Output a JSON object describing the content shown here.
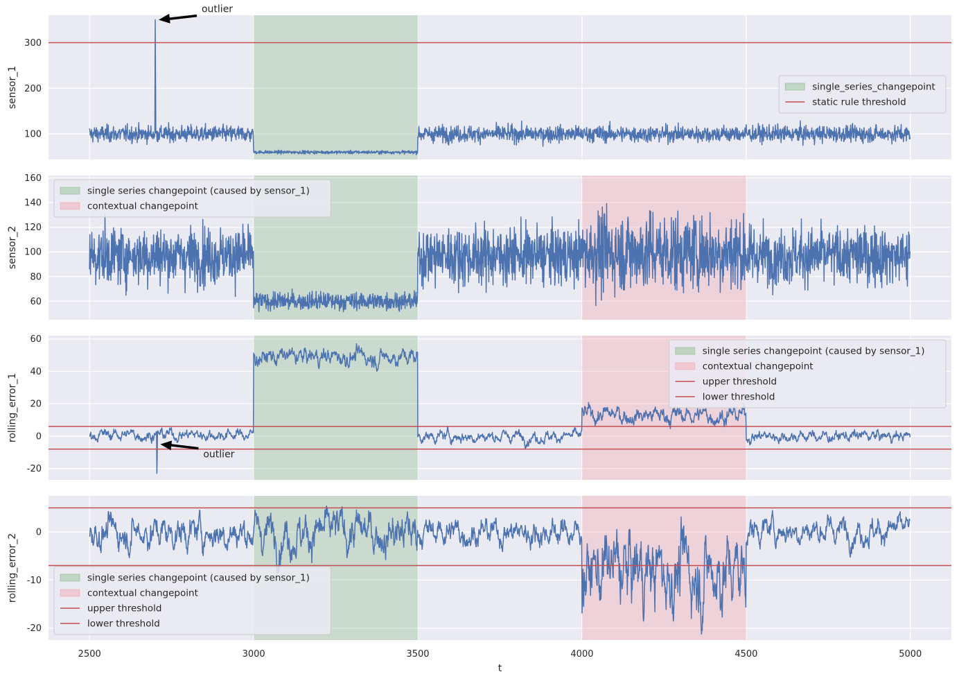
{
  "colors": {
    "series": "#4c72b0",
    "threshold": "#c44e52",
    "green_span": "#8fbc8f",
    "red_span": "#f4a6b0",
    "axes_bg": "#eaeaf2",
    "grid": "#ffffff",
    "arrow": "#000000"
  },
  "chart_data": [
    {
      "type": "line",
      "ylabel": "sensor_1",
      "ylim": [
        44,
        360
      ],
      "yticks": [
        100,
        200,
        300
      ],
      "xlim": [
        2375,
        5125
      ],
      "series": [
        {
          "name": "sensor_1",
          "segments": [
            {
              "x0": 2500,
              "x1": 3000,
              "mean": 100,
              "noise": 10
            },
            {
              "x0": 3000,
              "x1": 3500,
              "mean": 60,
              "noise": 2
            },
            {
              "x0": 3500,
              "x1": 5000,
              "mean": 100,
              "noise": 10
            }
          ],
          "spikes": [
            {
              "x": 2700,
              "y": 350
            }
          ]
        }
      ],
      "spans": [
        {
          "x0": 3000,
          "x1": 3500,
          "color": "green"
        }
      ],
      "hlines": [
        {
          "y": 300
        }
      ],
      "annotations": [
        {
          "text": "outlier",
          "x": 2700,
          "y": 350
        }
      ],
      "legend": {
        "position": "center-right",
        "entries": [
          {
            "kind": "patch",
            "color": "green",
            "label": "single_series_changepoint"
          },
          {
            "kind": "line",
            "label": "static rule threshold"
          }
        ]
      }
    },
    {
      "type": "line",
      "ylabel": "sensor_2",
      "ylim": [
        45,
        162
      ],
      "yticks": [
        60,
        80,
        100,
        120,
        140,
        160
      ],
      "xlim": [
        2375,
        5125
      ],
      "series": [
        {
          "name": "sensor_2",
          "segments": [
            {
              "x0": 2500,
              "x1": 3000,
              "mean": 97,
              "noise": 13
            },
            {
              "x0": 3000,
              "x1": 3500,
              "mean": 60,
              "noise": 4
            },
            {
              "x0": 3500,
              "x1": 4000,
              "mean": 97,
              "noise": 13
            },
            {
              "x0": 4000,
              "x1": 4500,
              "mean": 100,
              "noise": 18
            },
            {
              "x0": 4500,
              "x1": 5000,
              "mean": 97,
              "noise": 13
            }
          ]
        }
      ],
      "spans": [
        {
          "x0": 3000,
          "x1": 3500,
          "color": "green"
        },
        {
          "x0": 4000,
          "x1": 4500,
          "color": "red"
        }
      ],
      "hlines": [],
      "legend": {
        "position": "upper-left",
        "entries": [
          {
            "kind": "patch",
            "color": "green",
            "label": "single series changepoint (caused by sensor_1)"
          },
          {
            "kind": "patch",
            "color": "red",
            "label": "contextual changepoint"
          }
        ]
      }
    },
    {
      "type": "line",
      "ylabel": "rolling_error_1",
      "ylim": [
        -27,
        62
      ],
      "yticks": [
        -20,
        0,
        20,
        40,
        60
      ],
      "xlim": [
        2375,
        5125
      ],
      "series": [
        {
          "name": "rolling_error_1",
          "segments": [
            {
              "x0": 2500,
              "x1": 3000,
              "mean": 1,
              "noise": 2
            },
            {
              "x0": 3000,
              "x1": 3500,
              "mean": 49,
              "noise": 3
            },
            {
              "x0": 3500,
              "x1": 4000,
              "mean": 0,
              "noise": 2
            },
            {
              "x0": 4000,
              "x1": 4500,
              "mean": 13,
              "noise": 3
            },
            {
              "x0": 4500,
              "x1": 5000,
              "mean": 0,
              "noise": 2
            }
          ],
          "spikes": [
            {
              "x": 2705,
              "y": -23
            }
          ]
        }
      ],
      "spans": [
        {
          "x0": 3000,
          "x1": 3500,
          "color": "green"
        },
        {
          "x0": 4000,
          "x1": 4500,
          "color": "red"
        }
      ],
      "hlines": [
        {
          "y": 6
        },
        {
          "y": -8
        }
      ],
      "annotations": [
        {
          "text": "outlier",
          "x": 2705,
          "y": -5
        }
      ],
      "legend": {
        "position": "upper-right",
        "entries": [
          {
            "kind": "patch",
            "color": "green",
            "label": "single series changepoint (caused by sensor_1)"
          },
          {
            "kind": "patch",
            "color": "red",
            "label": "contextual changepoint"
          },
          {
            "kind": "line",
            "label": "upper threshold"
          },
          {
            "kind": "line",
            "label": "lower threshold"
          }
        ]
      }
    },
    {
      "type": "line",
      "ylabel": "rolling_error_2",
      "ylim": [
        -22.5,
        7.5
      ],
      "yticks": [
        -20,
        -10,
        0
      ],
      "xlim": [
        2375,
        5125
      ],
      "xticks": [
        2500,
        3000,
        3500,
        4000,
        4500,
        5000
      ],
      "xlabel": "t",
      "series": [
        {
          "name": "rolling_error_2",
          "segments": [
            {
              "x0": 2500,
              "x1": 3000,
              "mean": 0,
              "noise": 1.8
            },
            {
              "x0": 3000,
              "x1": 3500,
              "mean": 0,
              "noise": 2.4
            },
            {
              "x0": 3500,
              "x1": 4000,
              "mean": 0,
              "noise": 1.5
            },
            {
              "x0": 4000,
              "x1": 4500,
              "mean": -8,
              "noise": 4.5
            },
            {
              "x0": 4500,
              "x1": 5000,
              "mean": 0.5,
              "noise": 1.5
            }
          ]
        }
      ],
      "spans": [
        {
          "x0": 3000,
          "x1": 3500,
          "color": "green"
        },
        {
          "x0": 4000,
          "x1": 4500,
          "color": "red"
        }
      ],
      "hlines": [
        {
          "y": 5
        },
        {
          "y": -7
        }
      ],
      "legend": {
        "position": "lower-left",
        "entries": [
          {
            "kind": "patch",
            "color": "green",
            "label": "single series changepoint (caused by sensor_1)"
          },
          {
            "kind": "patch",
            "color": "red",
            "label": "contextual changepoint"
          },
          {
            "kind": "line",
            "label": "upper threshold"
          },
          {
            "kind": "line",
            "label": "lower threshold"
          }
        ]
      }
    }
  ]
}
